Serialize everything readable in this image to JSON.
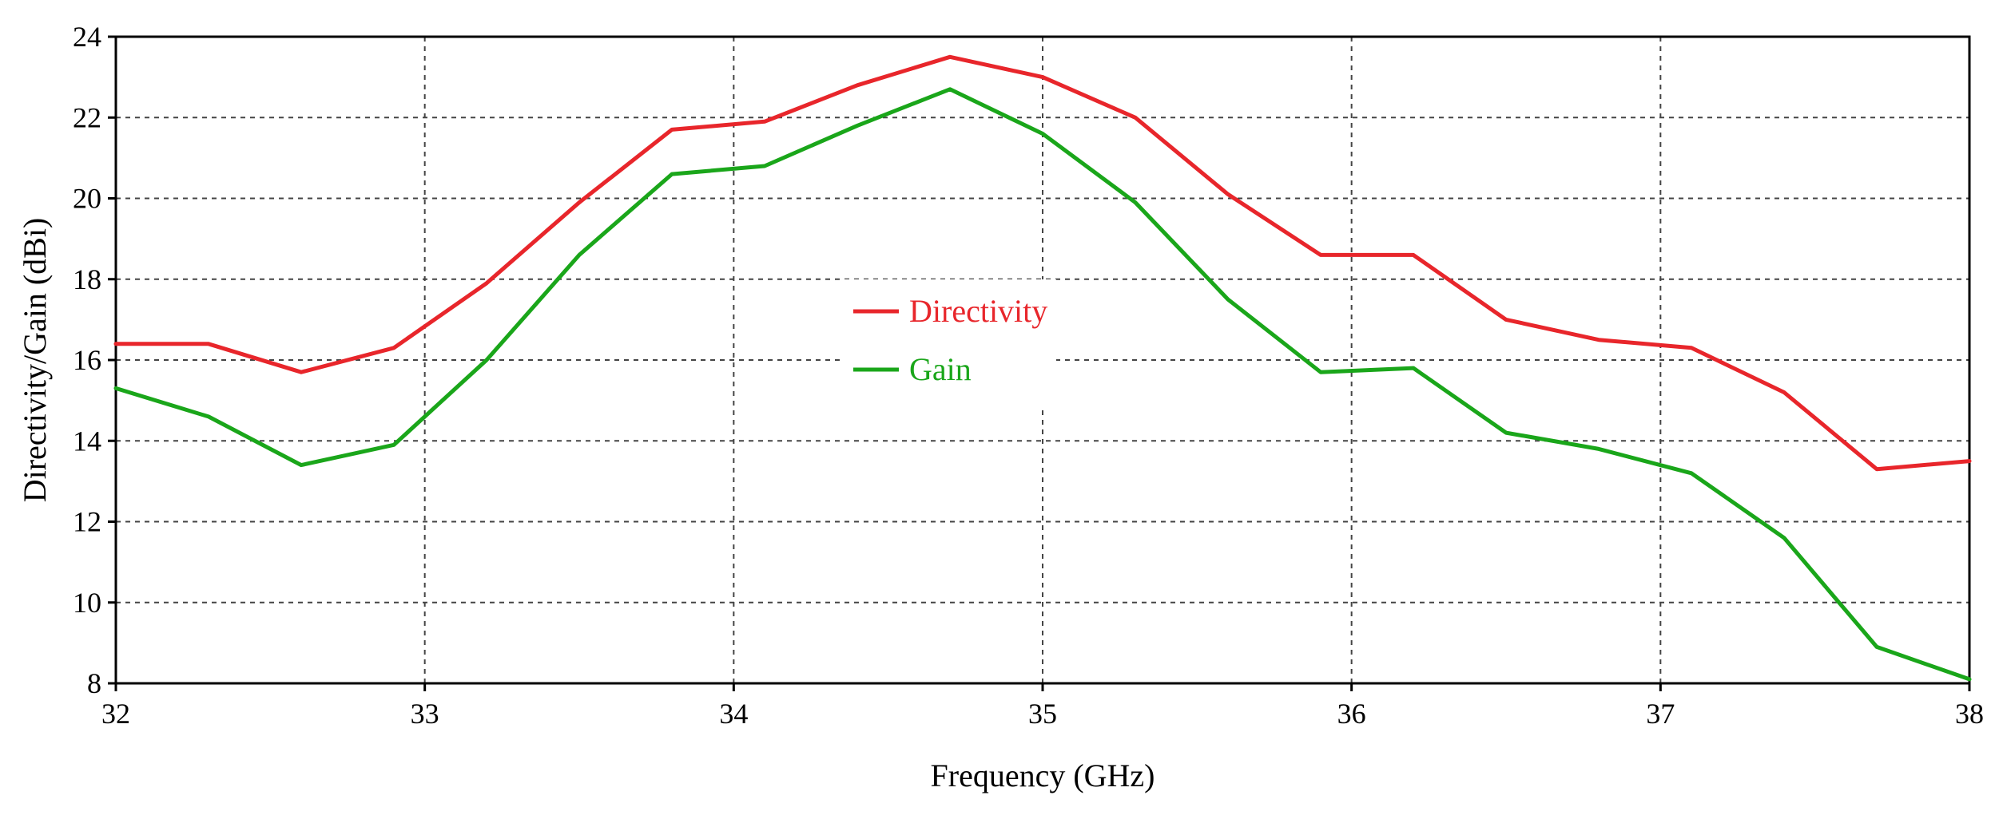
{
  "chart_data": {
    "type": "line",
    "title": "",
    "xlabel": "Frequency (GHz)",
    "ylabel": "Directivity/Gain (dBi)",
    "xlim": [
      32,
      38
    ],
    "ylim": [
      8,
      24
    ],
    "xticks": [
      32,
      33,
      34,
      35,
      36,
      37,
      38
    ],
    "yticks": [
      8,
      10,
      12,
      14,
      16,
      18,
      20,
      22,
      24
    ],
    "grid": true,
    "legend_position": "center",
    "x": [
      32.0,
      32.3,
      32.6,
      32.9,
      33.2,
      33.5,
      33.8,
      34.1,
      34.4,
      34.7,
      35.0,
      35.3,
      35.6,
      35.9,
      36.2,
      36.5,
      36.8,
      37.1,
      37.4,
      37.7,
      38.0
    ],
    "series": [
      {
        "name": "Directivity",
        "color": "#e8262b",
        "values": [
          16.4,
          16.4,
          15.7,
          16.3,
          17.9,
          19.9,
          21.7,
          21.9,
          22.8,
          23.5,
          23.0,
          22.0,
          20.1,
          18.6,
          18.6,
          17.0,
          16.5,
          16.3,
          15.2,
          13.3,
          13.5
        ]
      },
      {
        "name": "Gain",
        "color": "#1aa61a",
        "values": [
          15.3,
          14.6,
          13.4,
          13.9,
          16.0,
          18.6,
          20.6,
          20.8,
          21.8,
          22.7,
          21.6,
          19.9,
          17.5,
          15.7,
          15.8,
          14.2,
          13.8,
          13.2,
          11.6,
          8.9,
          8.1
        ]
      }
    ]
  }
}
